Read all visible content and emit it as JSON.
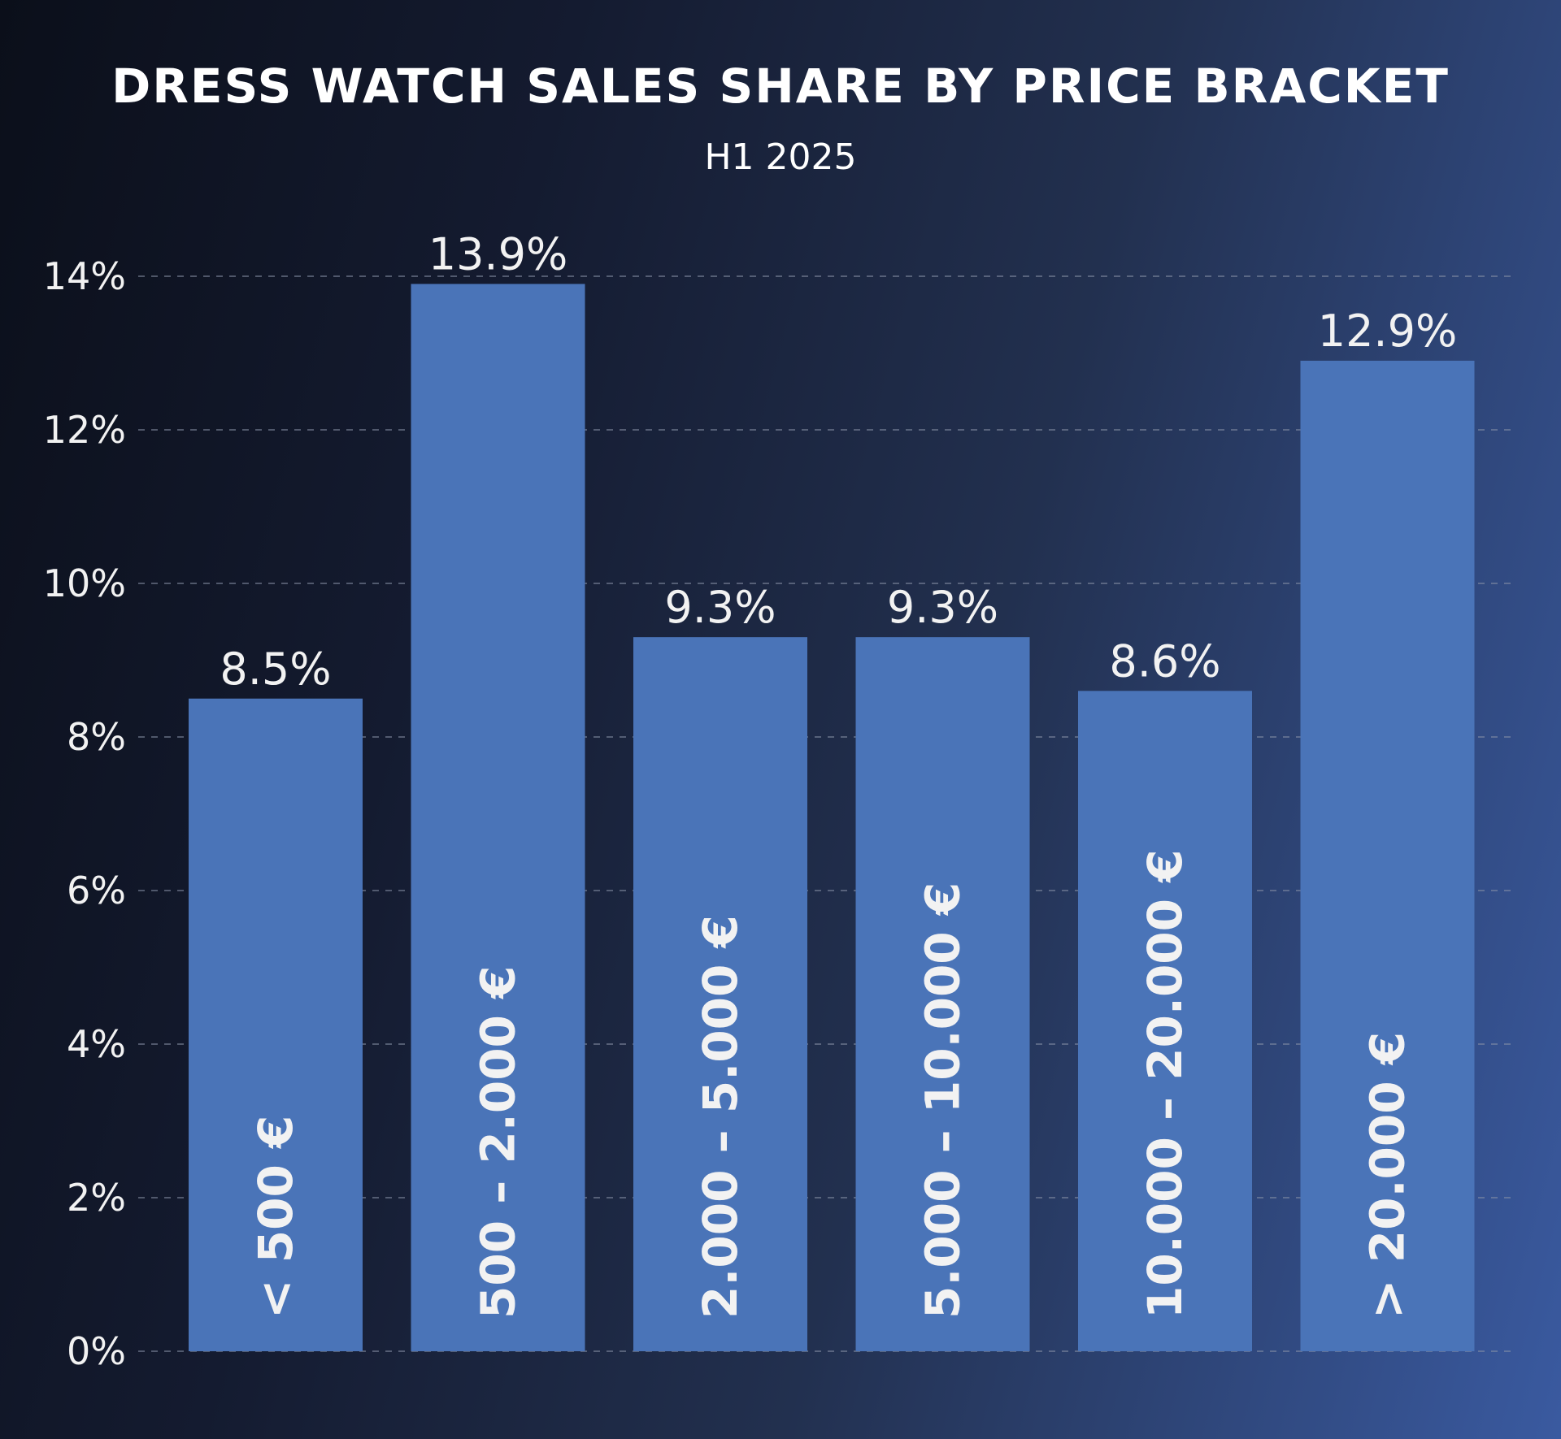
{
  "title": "DRESS WATCH SALES SHARE BY PRICE BRACKET",
  "subtitle": "H1 2025",
  "colors": {
    "bar": "#4a74b8",
    "grid": "#8a93a8",
    "text": "#ffffff"
  },
  "chart_data": {
    "type": "bar",
    "categories": [
      "< 500 €",
      "500 – 2.000 €",
      "2.000 – 5.000 €",
      "5.000 – 10.000 €",
      "10.000 – 20.000 €",
      "> 20.000 €"
    ],
    "values": [
      8.5,
      13.9,
      9.3,
      9.3,
      8.6,
      12.9
    ],
    "data_labels": [
      "8.5%",
      "13.9%",
      "9.3%",
      "9.3%",
      "8.6%",
      "12.9%"
    ],
    "ylim": [
      0,
      14
    ],
    "yticks": [
      0,
      2,
      4,
      6,
      8,
      10,
      12,
      14
    ],
    "ytick_labels": [
      "0%",
      "2%",
      "4%",
      "6%",
      "8%",
      "10%",
      "12%",
      "14%"
    ],
    "grid": true,
    "xlabel": "",
    "ylabel": ""
  }
}
